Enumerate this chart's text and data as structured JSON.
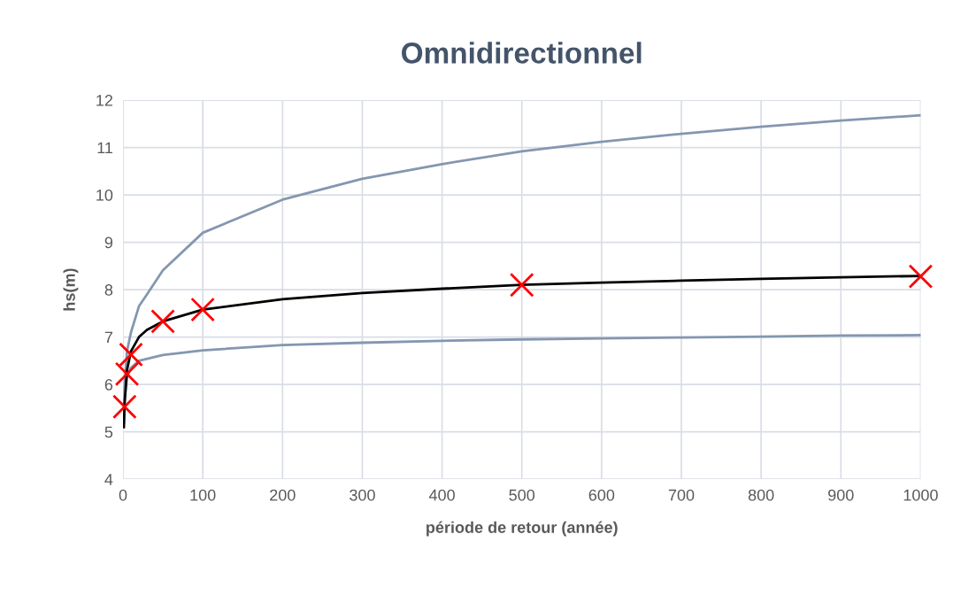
{
  "chart_data": {
    "type": "line",
    "title": "Omnidirectionnel",
    "xlabel": "période de retour (année)",
    "ylabel": "hs(m)",
    "xlim": [
      0,
      1000
    ],
    "xticks": [
      0,
      100,
      200,
      300,
      400,
      500,
      600,
      700,
      800,
      900,
      1000
    ],
    "ylim": [
      4,
      12
    ],
    "yticks": [
      4,
      5,
      6,
      7,
      8,
      9,
      10,
      11,
      12
    ],
    "grid": true,
    "legend": false,
    "series": [
      {
        "color": "#8497b0",
        "x": [
          1,
          2,
          5,
          10,
          20,
          30,
          50,
          100,
          200,
          300,
          400,
          500,
          600,
          700,
          800,
          900,
          1000
        ],
        "values": [
          5.2,
          6.0,
          6.7,
          7.1,
          7.65,
          7.9,
          8.41,
          9.2,
          9.9,
          10.34,
          10.65,
          10.92,
          11.12,
          11.29,
          11.44,
          11.57,
          11.68
        ]
      },
      {
        "color": "#8497b0",
        "x": [
          1,
          2,
          5,
          10,
          20,
          50,
          100,
          200,
          300,
          400,
          500,
          600,
          700,
          800,
          900,
          1000
        ],
        "values": [
          5.1,
          5.7,
          6.15,
          6.35,
          6.5,
          6.62,
          6.72,
          6.83,
          6.88,
          6.92,
          6.95,
          6.97,
          6.99,
          7.01,
          7.03,
          7.04
        ]
      },
      {
        "color": "#000000",
        "x": [
          1,
          2,
          5,
          10,
          20,
          30,
          50,
          100,
          200,
          300,
          400,
          500,
          600,
          700,
          800,
          900,
          1000
        ],
        "values": [
          5.1,
          5.6,
          6.3,
          6.7,
          7.0,
          7.15,
          7.33,
          7.58,
          7.8,
          7.93,
          8.02,
          8.1,
          8.15,
          8.19,
          8.23,
          8.26,
          8.29
        ]
      },
      {
        "type": "scatter",
        "color": "#ff0000",
        "marker": "cross",
        "x": [
          2,
          5,
          10,
          50,
          100,
          500,
          1000
        ],
        "values": [
          5.53,
          6.22,
          6.63,
          7.33,
          7.58,
          8.1,
          8.28
        ]
      }
    ]
  }
}
